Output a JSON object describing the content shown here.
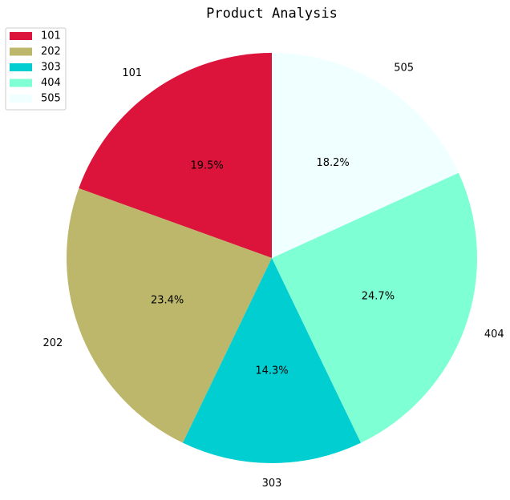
{
  "chart_data": {
    "type": "pie",
    "title": "Product Analysis",
    "categories": [
      "101",
      "202",
      "303",
      "404",
      "505"
    ],
    "values": [
      19.5,
      23.4,
      14.3,
      24.7,
      18.2
    ],
    "percent_labels": [
      "19.5%",
      "23.4%",
      "14.3%",
      "24.7%",
      "18.2%"
    ],
    "colors": [
      "#dc143c",
      "#bdb76b",
      "#00ced1",
      "#7fffd4",
      "#f0ffff"
    ],
    "start_angle_deg": 90,
    "direction": "counterclockwise",
    "legend": {
      "placement": "top-left",
      "entries": [
        "101",
        "202",
        "303",
        "404",
        "505"
      ]
    }
  }
}
